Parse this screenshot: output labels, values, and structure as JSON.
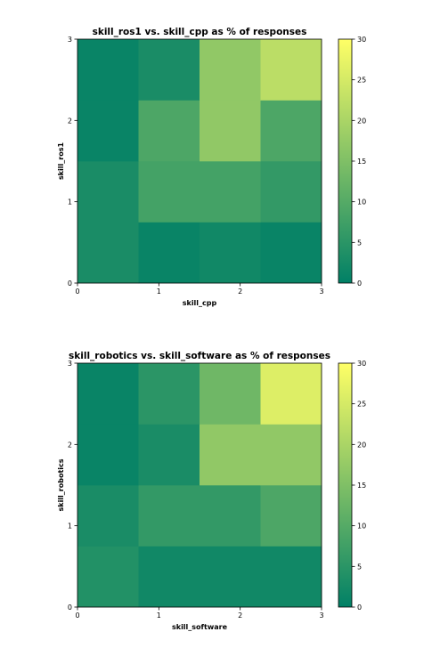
{
  "chart_data": [
    {
      "type": "heatmap",
      "title": "skill_ros1 vs. skill_cpp as % of responses",
      "xlabel": "skill_cpp",
      "ylabel": "skill_ros1",
      "x_ticks": [
        "0",
        "1",
        "2",
        "3"
      ],
      "y_ticks": [
        "0",
        "1",
        "2",
        "3"
      ],
      "xlim": [
        0,
        3
      ],
      "ylim": [
        0,
        3
      ],
      "colorbar": {
        "vmin": 0,
        "vmax": 30,
        "ticks": [
          "0",
          "5",
          "10",
          "15",
          "20",
          "25",
          "30"
        ],
        "colormap": "summer"
      },
      "grid": false,
      "values": [
        [
          3,
          1,
          2,
          1
        ],
        [
          3,
          8,
          8,
          6
        ],
        [
          1,
          9,
          17,
          9
        ],
        [
          1,
          3,
          17,
          22
        ]
      ]
    },
    {
      "type": "heatmap",
      "title": "skill_robotics vs. skill_software as % of responses",
      "xlabel": "skill_software",
      "ylabel": "skill_robotics",
      "x_ticks": [
        "0",
        "1",
        "2",
        "3"
      ],
      "y_ticks": [
        "0",
        "1",
        "2",
        "3"
      ],
      "xlim": [
        0,
        3
      ],
      "ylim": [
        0,
        3
      ],
      "colorbar": {
        "vmin": 0,
        "vmax": 30,
        "ticks": [
          "0",
          "5",
          "10",
          "15",
          "20",
          "25",
          "30"
        ],
        "colormap": "summer"
      },
      "grid": false,
      "values": [
        [
          4,
          2,
          2,
          2
        ],
        [
          3,
          6,
          6,
          9
        ],
        [
          1,
          3,
          17,
          17
        ],
        [
          1,
          5,
          13,
          26
        ]
      ]
    }
  ]
}
